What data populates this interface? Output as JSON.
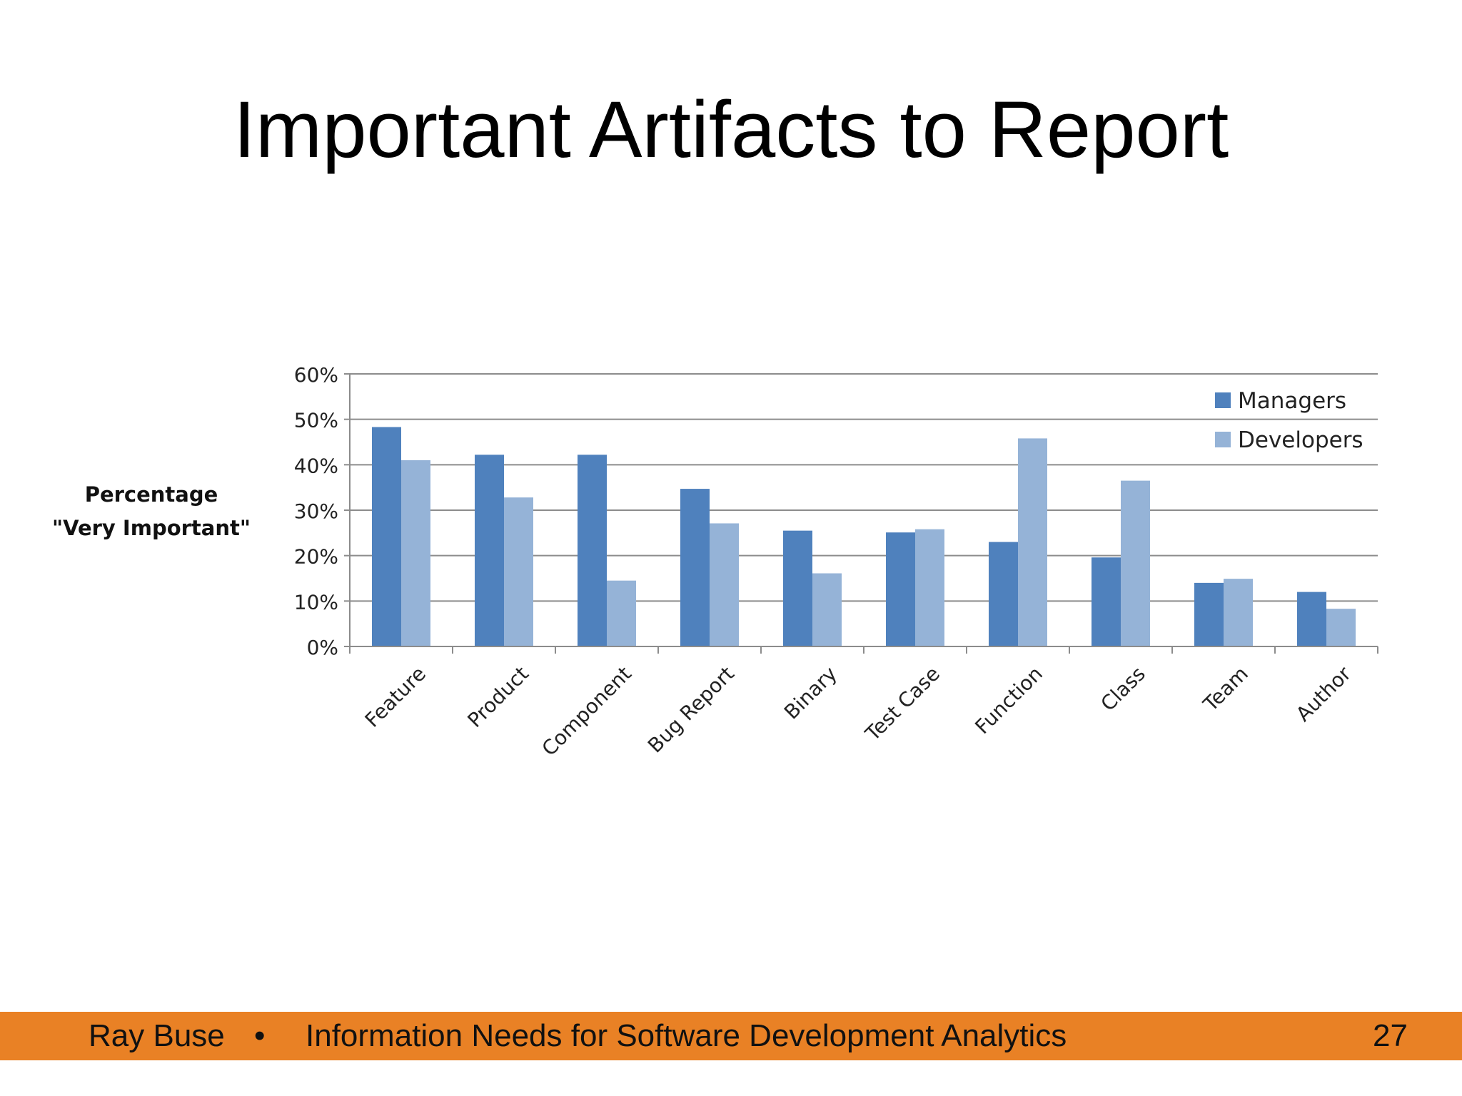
{
  "slide": {
    "title": "Important Artifacts to Report"
  },
  "footer": {
    "author": "Ray Buse",
    "separator": "•",
    "subject": "Information Needs for Software Development Analytics",
    "page": "27",
    "color": "#e98125"
  },
  "chart_data": {
    "type": "bar",
    "ylabel": [
      "Percentage",
      "\"Very Important\""
    ],
    "xlabel": "",
    "categories": [
      "Feature",
      "Product",
      "Component",
      "Bug Report",
      "Binary",
      "Test Case",
      "Function",
      "Class",
      "Team",
      "Author"
    ],
    "series": [
      {
        "name": "Managers",
        "color": "#4f81bd",
        "values": [
          48.3,
          42.2,
          42.2,
          34.7,
          25.5,
          25.1,
          23.0,
          19.6,
          14.0,
          12.0
        ]
      },
      {
        "name": "Developers",
        "color": "#95b3d7",
        "values": [
          41.0,
          32.8,
          14.5,
          27.1,
          16.1,
          25.8,
          45.8,
          36.5,
          14.9,
          8.3
        ]
      }
    ],
    "ylim": [
      0,
      60
    ],
    "yticks": [
      "0%",
      "10%",
      "20%",
      "30%",
      "40%",
      "50%",
      "60%"
    ],
    "grid": true,
    "legend_position": "top-right"
  }
}
